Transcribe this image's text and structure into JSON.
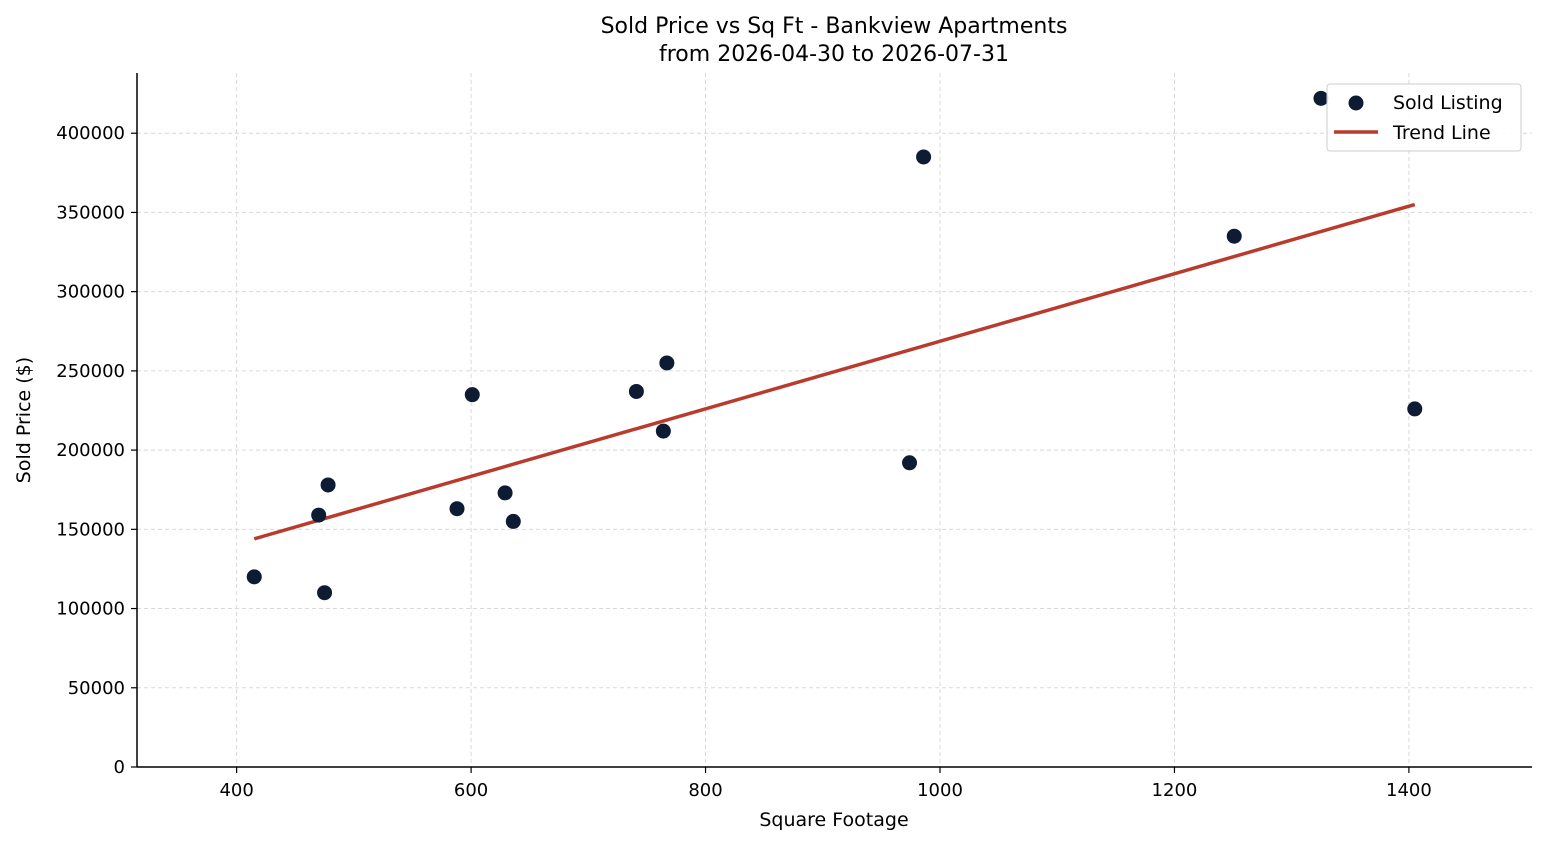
{
  "chart_data": {
    "type": "scatter",
    "title": "Sold Price vs Sq Ft - Bankview Apartments",
    "subtitle": "from 2026-04-30 to 2026-07-31",
    "xlabel": "Square Footage",
    "ylabel": "Sold Price ($)",
    "xlim": [
      315,
      1505
    ],
    "ylim": [
      0,
      438000
    ],
    "x_ticks": [
      400,
      600,
      800,
      1000,
      1200,
      1400
    ],
    "y_ticks": [
      0,
      50000,
      100000,
      150000,
      200000,
      250000,
      300000,
      350000,
      400000
    ],
    "grid": true,
    "legend_position": "top-right",
    "series": [
      {
        "name": "Sold Listing",
        "type": "scatter",
        "color": "#0d1b33",
        "points": [
          {
            "x": 415,
            "y": 120000
          },
          {
            "x": 470,
            "y": 159000
          },
          {
            "x": 475,
            "y": 110000
          },
          {
            "x": 478,
            "y": 178000
          },
          {
            "x": 588,
            "y": 163000
          },
          {
            "x": 601,
            "y": 235000
          },
          {
            "x": 629,
            "y": 173000
          },
          {
            "x": 636,
            "y": 155000
          },
          {
            "x": 741,
            "y": 237000
          },
          {
            "x": 764,
            "y": 212000
          },
          {
            "x": 767,
            "y": 255000
          },
          {
            "x": 974,
            "y": 192000
          },
          {
            "x": 986,
            "y": 385000
          },
          {
            "x": 1251,
            "y": 335000
          },
          {
            "x": 1325,
            "y": 422000
          },
          {
            "x": 1405,
            "y": 226000
          }
        ]
      },
      {
        "name": "Trend Line",
        "type": "line",
        "color": "#b83b2e",
        "points": [
          {
            "x": 415,
            "y": 144000
          },
          {
            "x": 1405,
            "y": 355000
          }
        ]
      }
    ]
  }
}
